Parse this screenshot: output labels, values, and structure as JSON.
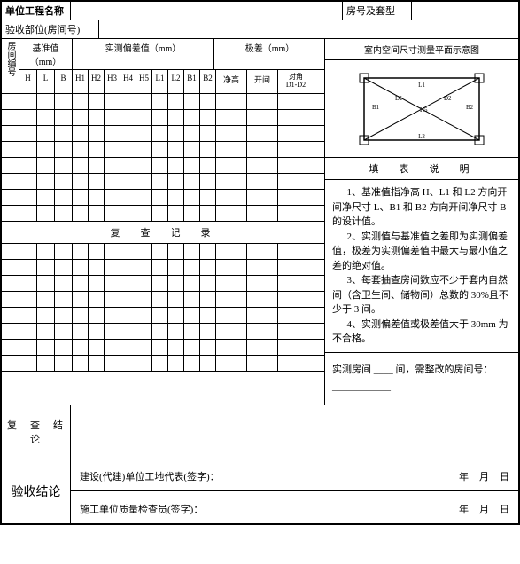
{
  "header": {
    "project_label": "单位工程名称",
    "room_type_label": "房号及套型",
    "accept_part_label": "验收部位(房间号)"
  },
  "grid": {
    "vert_label": "房间编号",
    "base_label": "基准值（mm）",
    "dev_label": "实测偏差值（mm）",
    "extreme_label": "极差（mm）",
    "cols_base": [
      "H",
      "L",
      "B"
    ],
    "cols_dev": [
      "H1",
      "H2",
      "H3",
      "H4",
      "H5",
      "L1",
      "L2",
      "B1",
      "B2"
    ],
    "cols_ext_a": "净高",
    "cols_ext_b": "开间",
    "cols_ext_c": "对角\nD1-D2",
    "recheck_title": "复　查　记　录"
  },
  "right": {
    "diagram_title": "室内空间尺寸测量平面示意图",
    "fill_title": "填　表　说　明",
    "note1": "1、基准值指净高 H、L1 和 L2 方向开间净尺寸 L、B1 和 B2 方向开间净尺寸 B 的设计值。",
    "note2": "2、实测值与基准值之差即为实测偏差值，极差为实测偏差值中最大与最小值之差的绝对值。",
    "note3": "3、每套抽查房间数应不少于套内自然间（含卫生间、储物间）总数的 30%且不少于 3 间。",
    "note4": "4、实测偏差值或极差值大于 30mm 为不合格。",
    "rooms_text": "实测房间 ____ 间，需整改的房间号：____________"
  },
  "conclude": {
    "fc_label": "复　查　结　论",
    "ys_label": "验收结论",
    "sig1": "建设(代建)单位工地代表(签字)：",
    "sig2": "施工单位质量检查员(签字)：",
    "year": "年",
    "month": "月",
    "day": "日"
  },
  "style": {
    "border_color": "#000000",
    "bg": "#ffffff"
  }
}
